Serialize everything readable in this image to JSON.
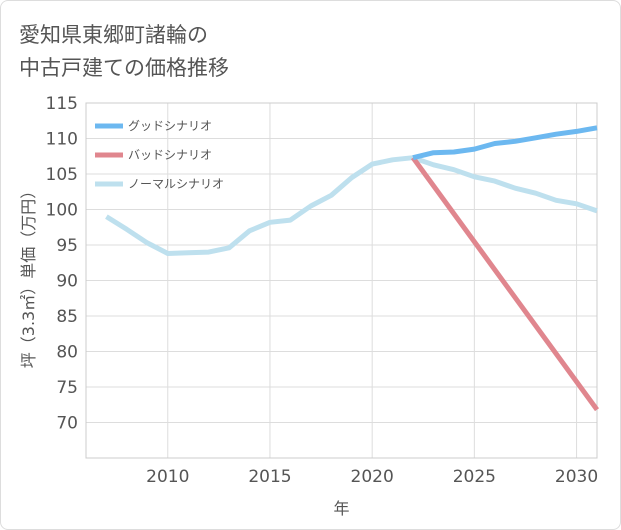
{
  "title_line1": "愛知県東郷町諸輪の",
  "title_line2": "中古戸建ての価格推移",
  "chart_data": {
    "type": "line",
    "title": "愛知県東郷町諸輪の中古戸建ての価格推移",
    "xlabel": "年",
    "ylabel": "坪（3.3㎡）単価（万円）",
    "xlim": [
      2006,
      2031
    ],
    "ylim": [
      65,
      115
    ],
    "xticks": [
      2010,
      2015,
      2020,
      2025,
      2030
    ],
    "yticks": [
      70,
      75,
      80,
      85,
      90,
      95,
      100,
      105,
      110,
      115
    ],
    "grid": true,
    "legend_position": "top-left",
    "series": [
      {
        "name": "グッドシナリオ",
        "color": "#6cb8f0",
        "x": [
          2022,
          2023,
          2024,
          2025,
          2026,
          2027,
          2028,
          2029,
          2030,
          2031
        ],
        "y": [
          107.3,
          108.0,
          108.1,
          108.5,
          109.3,
          109.6,
          110.1,
          110.6,
          111.0,
          111.5
        ]
      },
      {
        "name": "バッドシナリオ",
        "color": "#e0868e",
        "x": [
          2022,
          2031
        ],
        "y": [
          107.3,
          71.8
        ]
      },
      {
        "name": "ノーマルシナリオ",
        "color": "#bee0ee",
        "x": [
          2007,
          2008,
          2009,
          2010,
          2011,
          2012,
          2013,
          2014,
          2015,
          2016,
          2017,
          2018,
          2019,
          2020,
          2021,
          2022,
          2023,
          2024,
          2025,
          2026,
          2027,
          2028,
          2029,
          2030,
          2031
        ],
        "y": [
          99.0,
          97.2,
          95.3,
          93.8,
          93.9,
          94.0,
          94.6,
          97.0,
          98.2,
          98.5,
          100.5,
          102.0,
          104.5,
          106.4,
          107.0,
          107.3,
          106.3,
          105.6,
          104.6,
          104.0,
          103.0,
          102.3,
          101.3,
          100.8,
          99.8
        ]
      }
    ]
  }
}
